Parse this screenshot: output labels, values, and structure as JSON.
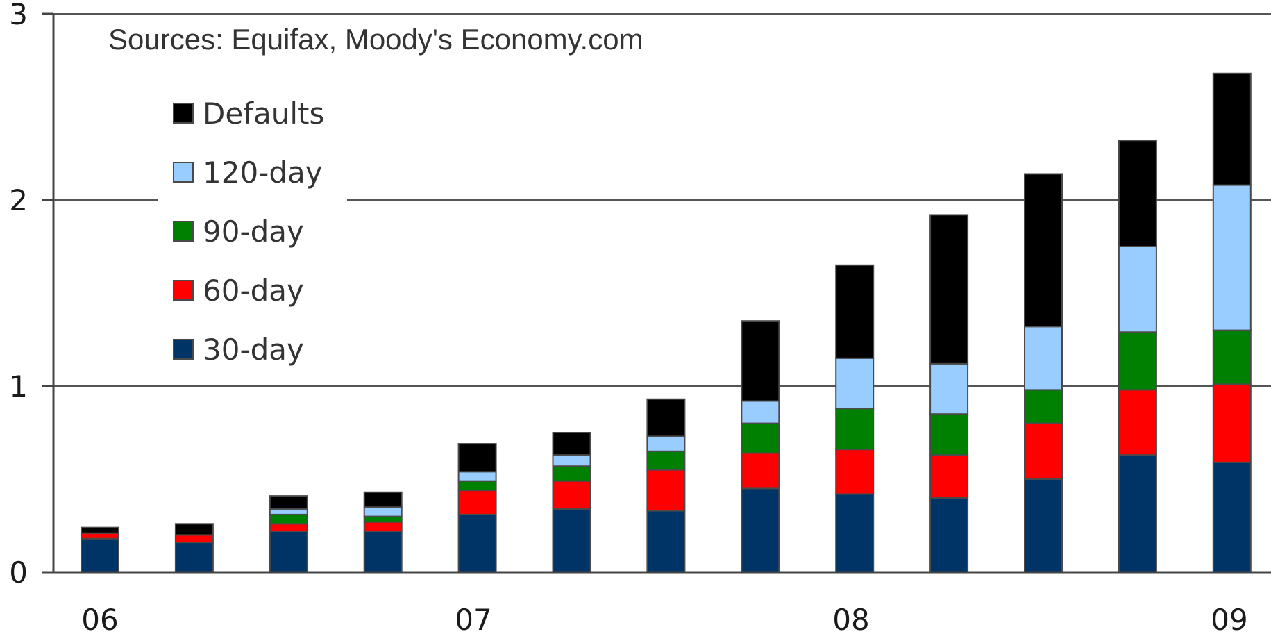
{
  "chart_data": {
    "type": "bar",
    "stacked": true,
    "annotation": "Sources:  Equifax, Moody's Economy.com",
    "x_tick_labels": [
      "06",
      "07",
      "08",
      "09"
    ],
    "y_tick_labels": [
      "0",
      "1",
      "2",
      "3"
    ],
    "ylim": [
      0,
      3
    ],
    "grid": true,
    "legend_placement": "top-left",
    "categories": [
      "1",
      "2",
      "3",
      "4",
      "5",
      "6",
      "7",
      "8",
      "9",
      "10",
      "11",
      "12",
      "13"
    ],
    "series": [
      {
        "name": "30-day",
        "color": "#003366",
        "values": [
          0.18,
          0.16,
          0.22,
          0.22,
          0.31,
          0.34,
          0.33,
          0.45,
          0.42,
          0.4,
          0.5,
          0.63,
          0.59
        ]
      },
      {
        "name": "60-day",
        "color": "#ff0000",
        "values": [
          0.03,
          0.04,
          0.04,
          0.05,
          0.13,
          0.15,
          0.22,
          0.19,
          0.24,
          0.23,
          0.3,
          0.35,
          0.42
        ]
      },
      {
        "name": "90-day",
        "color": "#008000",
        "values": [
          0.0,
          0.0,
          0.05,
          0.03,
          0.05,
          0.08,
          0.1,
          0.16,
          0.22,
          0.22,
          0.18,
          0.31,
          0.29
        ]
      },
      {
        "name": "120-day",
        "color": "#99ccff",
        "values": [
          0.0,
          0.0,
          0.03,
          0.05,
          0.05,
          0.06,
          0.08,
          0.12,
          0.27,
          0.27,
          0.34,
          0.46,
          0.78
        ]
      },
      {
        "name": "Defaults",
        "color": "#000000",
        "values": [
          0.03,
          0.06,
          0.07,
          0.08,
          0.15,
          0.12,
          0.2,
          0.43,
          0.5,
          0.8,
          0.82,
          0.57,
          0.6
        ]
      }
    ],
    "legend_order": [
      "Defaults",
      "120-day",
      "90-day",
      "60-day",
      "30-day"
    ]
  }
}
